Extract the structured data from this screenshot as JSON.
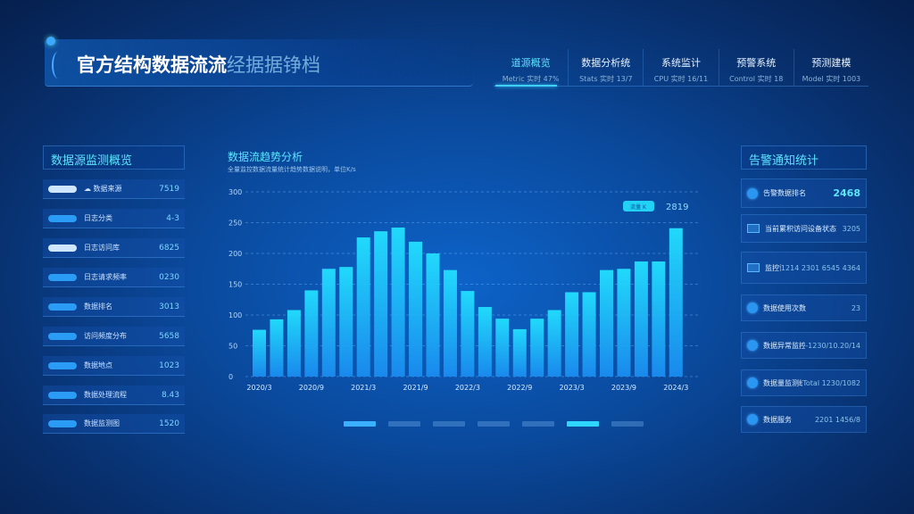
{
  "header": {
    "title_main": "官方结构数据流流",
    "title_sub": "经据据铮档"
  },
  "tabs": [
    {
      "label": "道源概览",
      "sub": "Metric 实时 47%"
    },
    {
      "label": "数据分析统",
      "sub": "Stats 实时 13/7"
    },
    {
      "label": "系统监计",
      "sub": "CPU 实时 16/11"
    },
    {
      "label": "预警系统",
      "sub": "Control 实时 18"
    },
    {
      "label": "预测建模",
      "sub": "Model 实时 1003"
    }
  ],
  "left_panel": {
    "title": "数据源监测概览",
    "rows": [
      {
        "label": "☁ 数据来源",
        "value": "7519",
        "pill": "light"
      },
      {
        "label": "日志分类",
        "value": "4-3",
        "pill": "blue"
      },
      {
        "label": "日志访问库",
        "value": "6825",
        "pill": "light"
      },
      {
        "label": "日志请求频率",
        "value": "0230",
        "pill": "blue"
      },
      {
        "label": "数据排名",
        "value": "3013",
        "pill": "blue"
      },
      {
        "label": "访问频度分布",
        "value": "5658",
        "pill": "blue"
      },
      {
        "label": "数据地点",
        "value": "1023",
        "pill": "blue"
      },
      {
        "label": "数据处理流程",
        "value": "8.43",
        "pill": "blue"
      },
      {
        "label": "数据监测图",
        "value": "1520",
        "pill": "blue"
      }
    ]
  },
  "chart_data": {
    "type": "bar",
    "title": "数据流趋势分析",
    "subtitle": "全量监控数据流量统计趋势数据说明，单位K/s",
    "ylim": [
      0,
      300
    ],
    "yticks": [
      "0",
      "50",
      "100",
      "150",
      "200",
      "250",
      "300"
    ],
    "xticks": [
      "2020/3",
      "2020/9",
      "2021/3",
      "2021/9",
      "2022/3",
      "2022/9",
      "2023/3",
      "2023/9",
      "2024/3"
    ],
    "values": [
      76,
      93,
      108,
      140,
      175,
      178,
      226,
      236,
      242,
      219,
      200,
      173,
      139,
      113,
      94,
      77,
      94,
      108,
      137,
      137,
      173,
      175,
      187,
      187,
      241
    ],
    "legend": {
      "label": "流量 K",
      "value": "2819"
    },
    "grid": true,
    "color_top": "#22e0ff",
    "color_bottom": "#1a8cf0"
  },
  "right_panel": {
    "title": "告警通知统计",
    "cards": [
      {
        "icon": "circle",
        "label": "告警数据排名",
        "value": "2468",
        "hi": true
      },
      {
        "icon": "monitor",
        "label": "当前累积访问设备状态",
        "value": "3205"
      },
      {
        "icon": "monitor",
        "label": "监控访问排行设备状态",
        "value": "1214  2301  6545  4364"
      },
      {
        "icon": "circle",
        "label": "数据使用次数",
        "value": "23"
      },
      {
        "icon": "circle",
        "label": "数据异常监控",
        "value": "-1230/10.20/14"
      },
      {
        "icon": "circle",
        "label": "数据量监测统计",
        "value": "Total 1230/1082"
      },
      {
        "icon": "circle",
        "label": "数据服务",
        "value": "2201  1456/8"
      }
    ]
  },
  "pager": {
    "count": 7,
    "active": 0
  }
}
